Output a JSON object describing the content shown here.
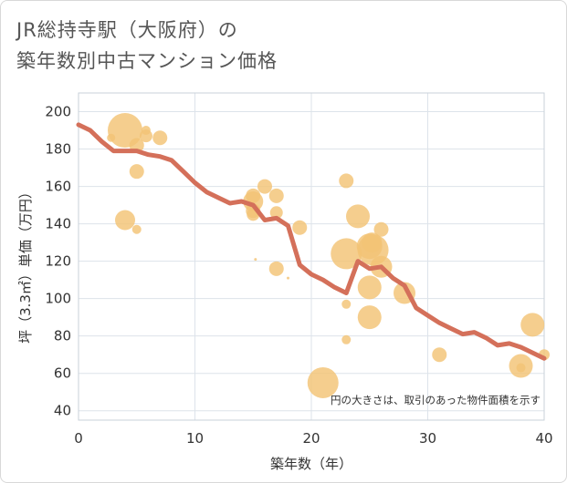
{
  "title_lines": [
    "JR総持寺駅（大阪府）の",
    "築年数別中古マンション価格"
  ],
  "chart_data": {
    "type": "scatter",
    "xlabel": "築年数（年）",
    "ylabel": "坪（3.3㎡）単価（万円）",
    "xlim": [
      0,
      40
    ],
    "ylim": [
      35,
      210
    ],
    "xticks": [
      0,
      10,
      20,
      30,
      40
    ],
    "yticks": [
      40,
      60,
      80,
      100,
      120,
      140,
      160,
      180,
      200
    ],
    "grid": true,
    "annotation": "円の大きさは、取引のあった物件面積を示す",
    "colors": {
      "bubble": "#f3c375",
      "line": "#d4705a"
    },
    "bubbles": [
      {
        "x": 4,
        "y": 190,
        "size": 38
      },
      {
        "x": 5,
        "y": 182,
        "size": 16
      },
      {
        "x": 2.8,
        "y": 186,
        "size": 9
      },
      {
        "x": 5.8,
        "y": 190,
        "size": 10
      },
      {
        "x": 5.8,
        "y": 187,
        "size": 14
      },
      {
        "x": 7,
        "y": 186,
        "size": 16
      },
      {
        "x": 5,
        "y": 168,
        "size": 16
      },
      {
        "x": 4,
        "y": 142,
        "size": 22
      },
      {
        "x": 5,
        "y": 137,
        "size": 10
      },
      {
        "x": 15,
        "y": 155,
        "size": 16
      },
      {
        "x": 15,
        "y": 152,
        "size": 22
      },
      {
        "x": 15,
        "y": 147,
        "size": 16
      },
      {
        "x": 15,
        "y": 145,
        "size": 14
      },
      {
        "x": 16,
        "y": 160,
        "size": 16
      },
      {
        "x": 17,
        "y": 155,
        "size": 16
      },
      {
        "x": 17,
        "y": 146,
        "size": 14
      },
      {
        "x": 15.2,
        "y": 121,
        "size": 3
      },
      {
        "x": 17,
        "y": 116,
        "size": 16
      },
      {
        "x": 18,
        "y": 111,
        "size": 3
      },
      {
        "x": 19,
        "y": 138,
        "size": 16
      },
      {
        "x": 23,
        "y": 163,
        "size": 16
      },
      {
        "x": 24,
        "y": 144,
        "size": 26
      },
      {
        "x": 23,
        "y": 124,
        "size": 34
      },
      {
        "x": 25,
        "y": 128,
        "size": 28
      },
      {
        "x": 25.3,
        "y": 126,
        "size": 34
      },
      {
        "x": 25.2,
        "y": 130,
        "size": 22
      },
      {
        "x": 26,
        "y": 137,
        "size": 16
      },
      {
        "x": 26,
        "y": 117,
        "size": 24
      },
      {
        "x": 25,
        "y": 106,
        "size": 26
      },
      {
        "x": 23,
        "y": 97,
        "size": 10
      },
      {
        "x": 25,
        "y": 90,
        "size": 26
      },
      {
        "x": 23,
        "y": 78,
        "size": 10
      },
      {
        "x": 28,
        "y": 103,
        "size": 24
      },
      {
        "x": 21,
        "y": 55,
        "size": 34
      },
      {
        "x": 31,
        "y": 70,
        "size": 16
      },
      {
        "x": 39,
        "y": 86,
        "size": 26
      },
      {
        "x": 38,
        "y": 64,
        "size": 26
      },
      {
        "x": 38,
        "y": 63,
        "size": 10
      },
      {
        "x": 40,
        "y": 70,
        "size": 12
      }
    ],
    "trend": {
      "x": [
        0,
        1,
        2,
        3,
        4,
        5,
        6,
        7,
        8,
        9,
        10,
        11,
        12,
        13,
        14,
        15,
        16,
        17,
        18,
        19,
        20,
        21,
        22,
        23,
        24,
        25,
        26,
        27,
        28,
        29,
        30,
        31,
        32,
        33,
        34,
        35,
        36,
        37,
        38,
        39,
        40
      ],
      "y": [
        193,
        190,
        184,
        179,
        179,
        179,
        177,
        176,
        174,
        168,
        162,
        157,
        154,
        151,
        152,
        150,
        142,
        143,
        139,
        118,
        113,
        110,
        106,
        103,
        120,
        116,
        117,
        111,
        107,
        95,
        91,
        87,
        84,
        81,
        82,
        79,
        75,
        76,
        74,
        71,
        68
      ]
    }
  }
}
